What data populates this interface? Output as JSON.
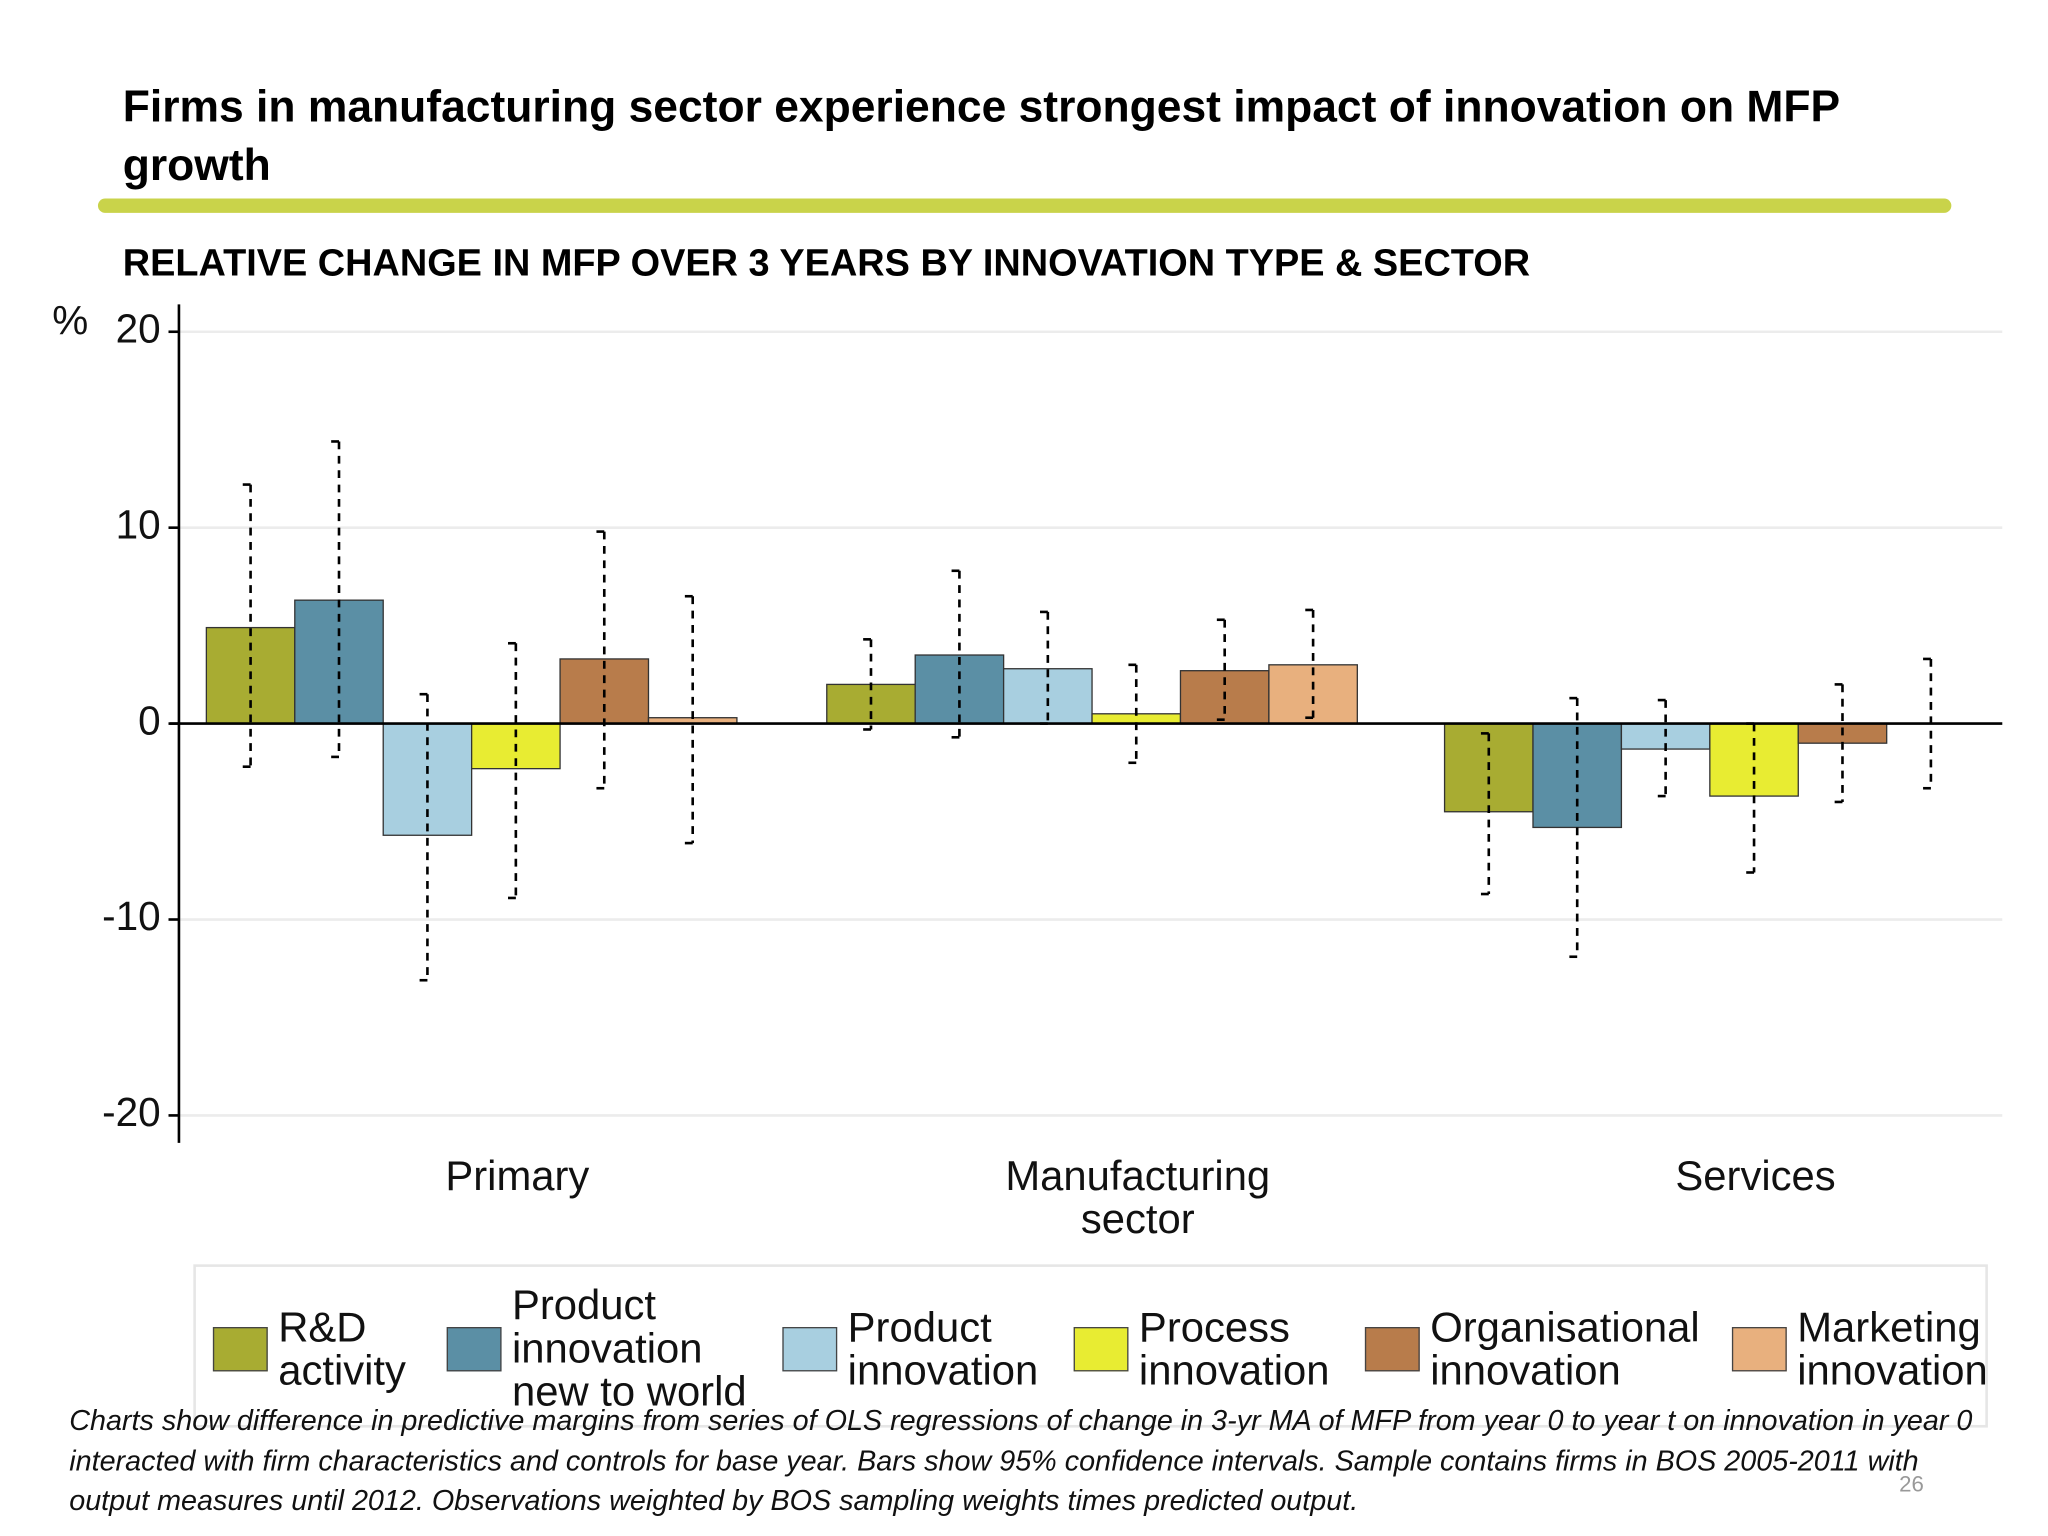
{
  "chart_data": {
    "type": "bar",
    "title": "Firms in manufacturing sector experience strongest impact of innovation on MFP growth",
    "subtitle": "RELATIVE CHANGE IN MFP OVER 3 YEARS BY INNOVATION TYPE & SECTOR",
    "y_label": "%",
    "categories": [
      "Primary",
      "Manufacturing sector",
      "Services"
    ],
    "series": [
      {
        "name": "R&D activity",
        "color": "#a8ac32",
        "values": [
          4.9,
          2.0,
          -4.5
        ],
        "ci_low": [
          -2.2,
          -0.3,
          -8.7
        ],
        "ci_high": [
          12.2,
          4.3,
          -0.5
        ]
      },
      {
        "name": "Product innovation new to world",
        "color": "#5b8fa5",
        "values": [
          6.3,
          3.5,
          -5.3
        ],
        "ci_low": [
          -1.7,
          -0.7,
          -11.9
        ],
        "ci_high": [
          14.4,
          7.8,
          1.3
        ]
      },
      {
        "name": "Product innovation",
        "color": "#a8cfe0",
        "values": [
          -5.7,
          2.8,
          -1.3
        ],
        "ci_low": [
          -13.1,
          0.0,
          -3.7
        ],
        "ci_high": [
          1.5,
          5.7,
          1.2
        ]
      },
      {
        "name": "Process innovation",
        "color": "#e8ec32",
        "values": [
          -2.3,
          0.5,
          -3.7
        ],
        "ci_low": [
          -8.9,
          -2.0,
          -7.6
        ],
        "ci_high": [
          4.1,
          3.0,
          0.0
        ]
      },
      {
        "name": "Organisational innovation",
        "color": "#b87c4b",
        "values": [
          3.3,
          2.7,
          -1.0
        ],
        "ci_low": [
          -3.3,
          0.2,
          -4.0
        ],
        "ci_high": [
          9.8,
          5.3,
          2.0
        ]
      },
      {
        "name": "Marketing innovation",
        "color": "#e8b07e",
        "values": [
          0.3,
          3.0,
          0.0
        ],
        "ci_low": [
          -6.1,
          0.3,
          -3.3
        ],
        "ci_high": [
          6.5,
          5.8,
          3.3
        ]
      }
    ],
    "ylim": [
      -21.4,
      21.4
    ],
    "yticks": [
      -20,
      -10,
      0,
      10,
      20
    ],
    "grid": true,
    "note": "Charts show difference in predictive margins from series of OLS regressions of change in 3-yr MA of MFP from year 0 to year t on innovation in year 0 interacted with firm characteristics and controls for base year. Bars show 95% confidence intervals. Sample contains firms in BOS 2005-2011 with output measures until 2012. Observations weighted by BOS sampling weights times predicted output.",
    "page_number": "26"
  }
}
